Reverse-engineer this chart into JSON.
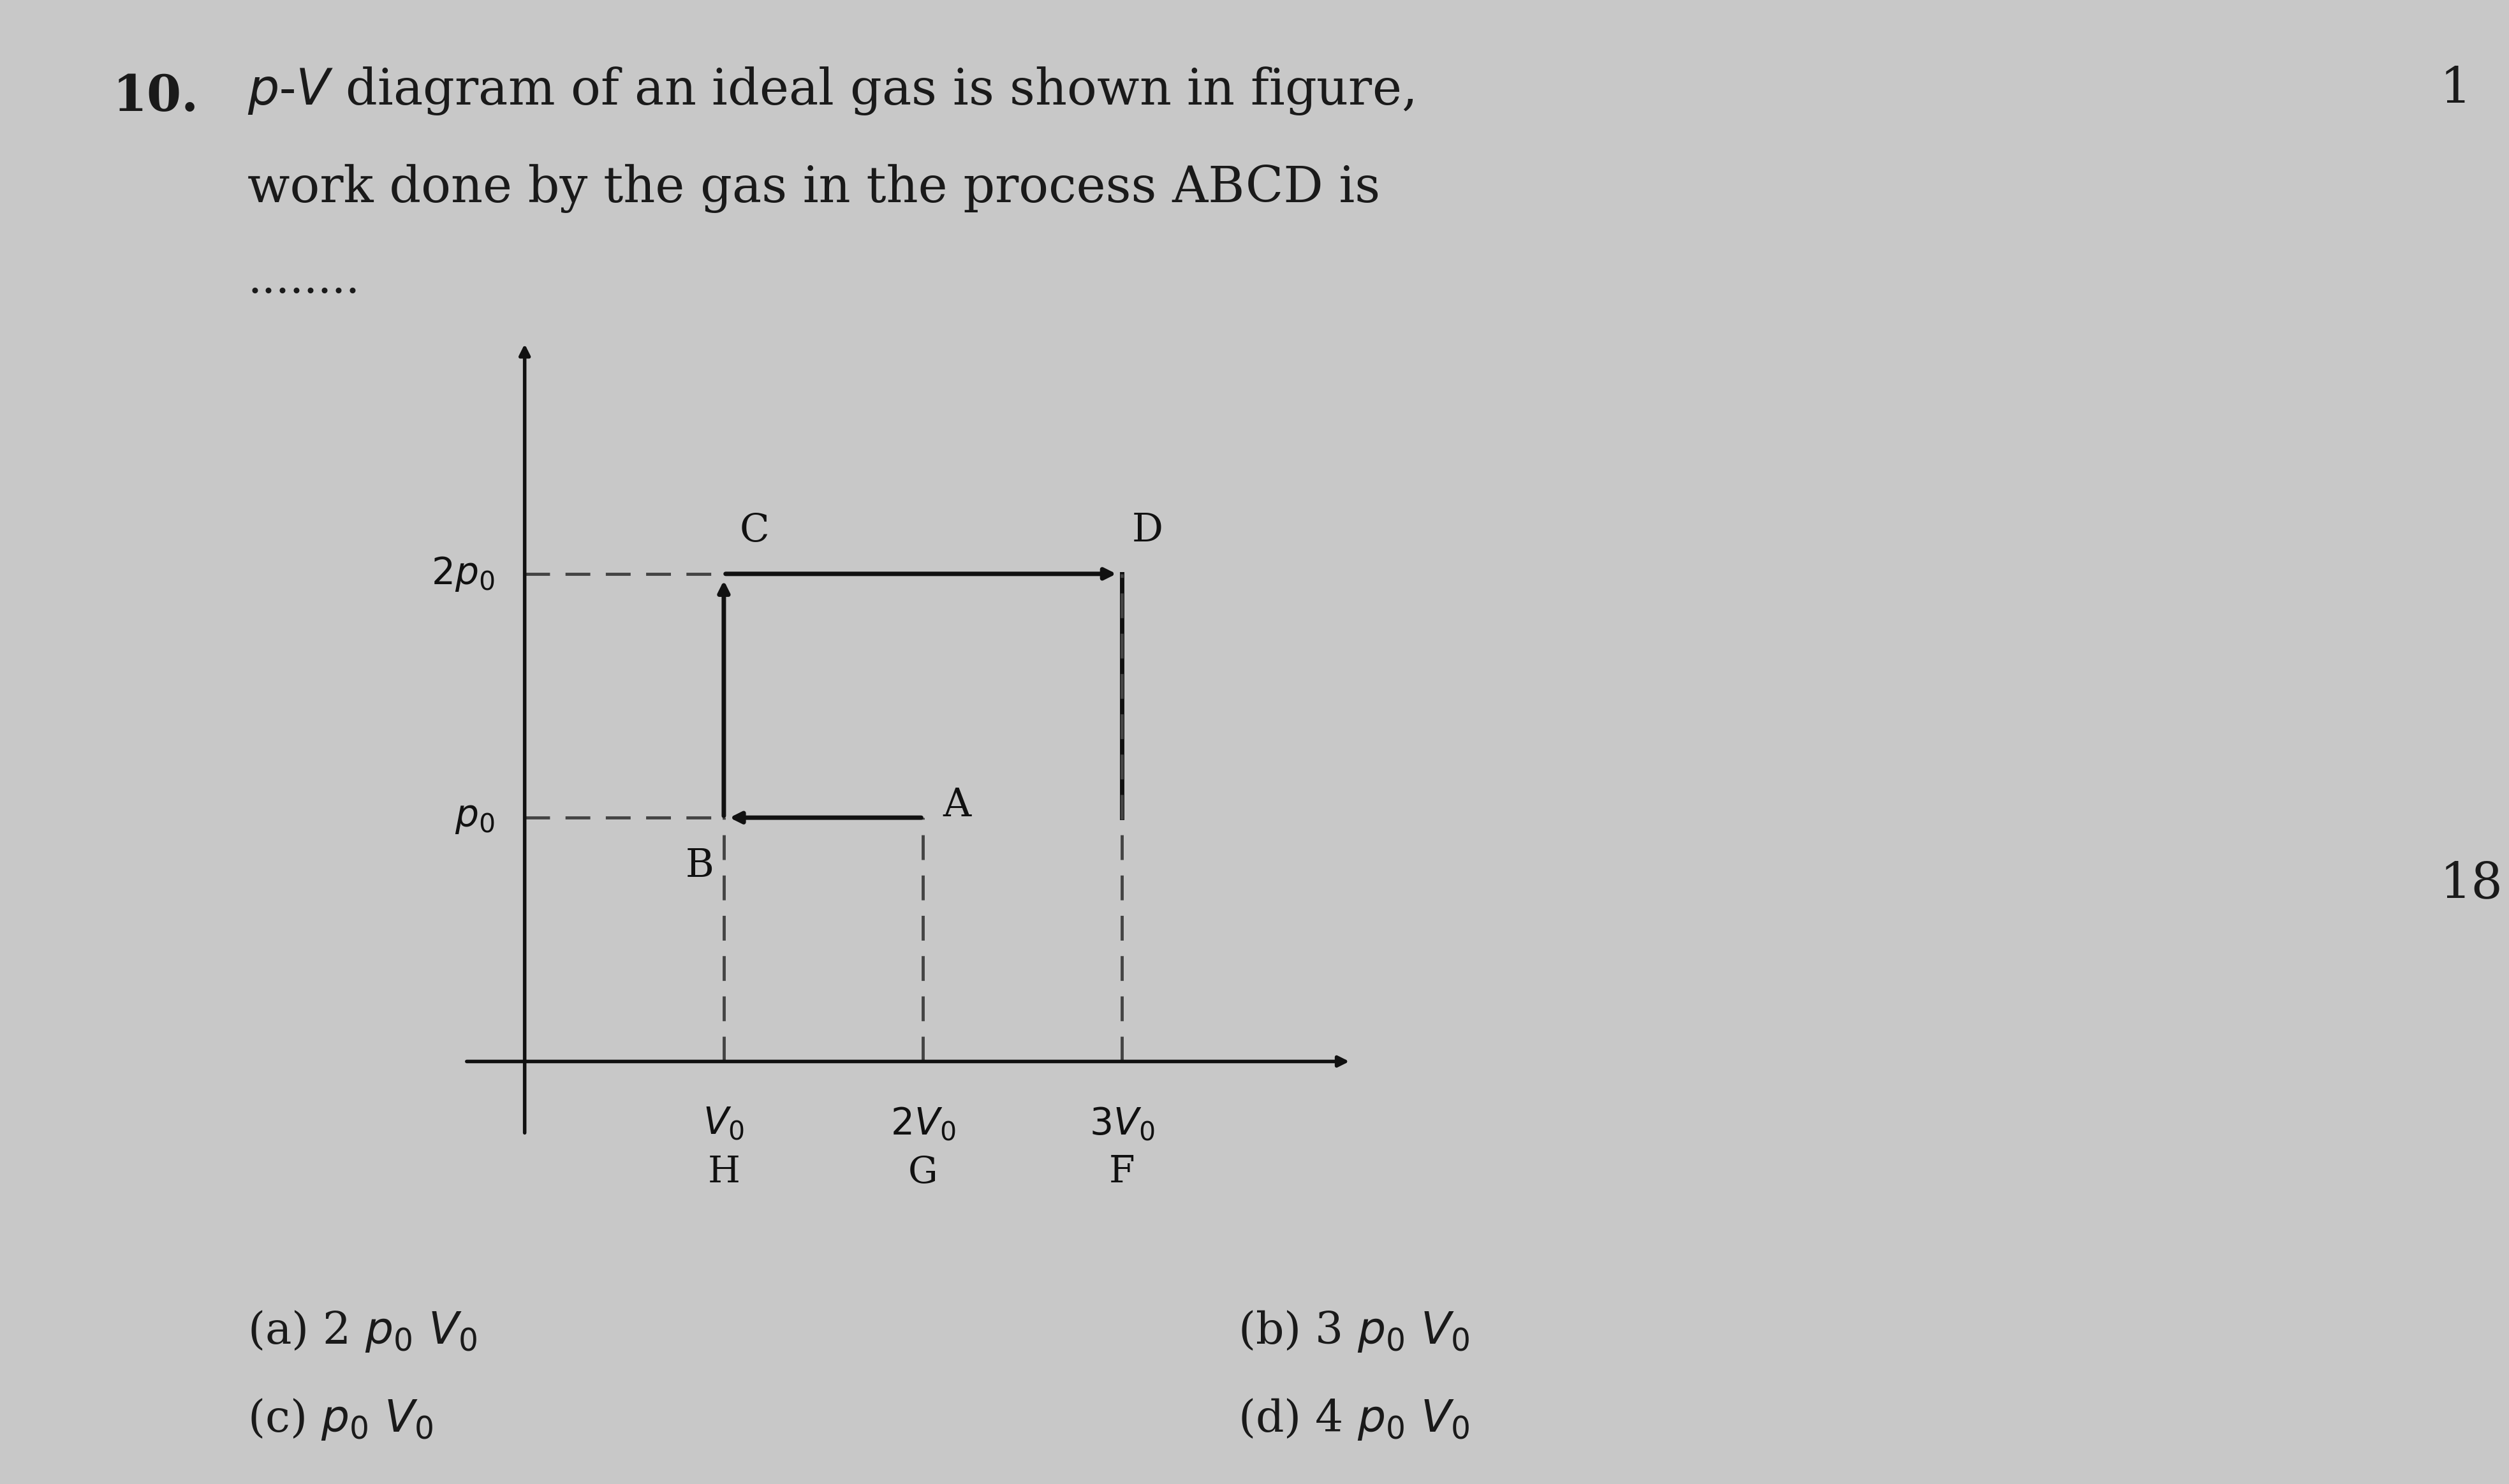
{
  "bg_color": "#c8c8c8",
  "text_color": "#1a1a1a",
  "title_num": "10.",
  "subtitle_dots": "........",
  "side_number_1": "1",
  "side_number_18": "18",
  "diagram": {
    "xmax": 4.2,
    "ymax": 3.0,
    "p0": 1.0,
    "p_2p0": 2.0,
    "V0": 1.0,
    "V_2V0": 2.0,
    "V_3V0": 3.0,
    "A": [
      2.0,
      1.0
    ],
    "B": [
      1.0,
      1.0
    ],
    "C": [
      1.0,
      2.0
    ],
    "D": [
      3.0,
      2.0
    ],
    "dashed_color": "#444444",
    "solid_color": "#111111"
  }
}
